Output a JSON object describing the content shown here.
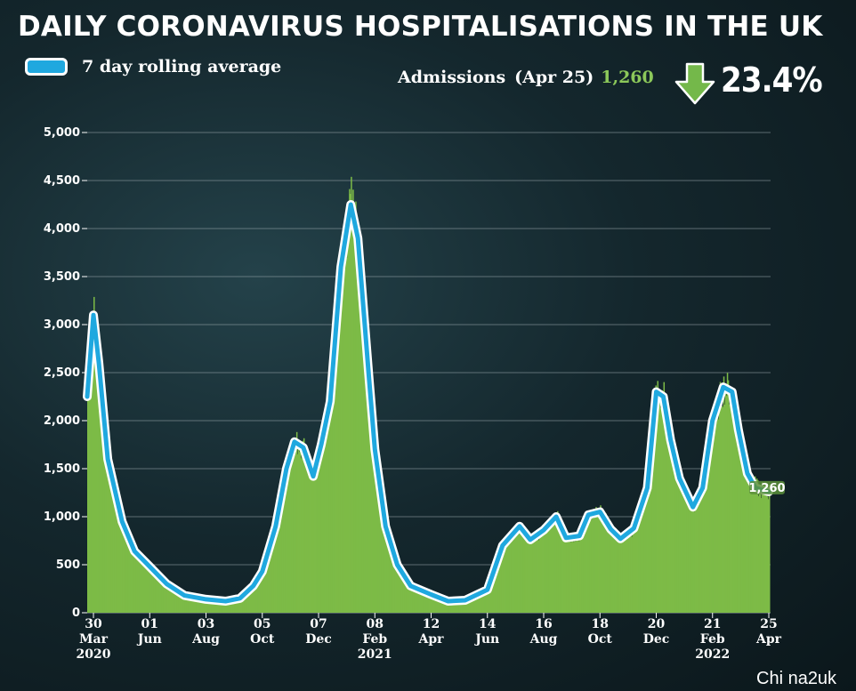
{
  "title": "DAILY CORONAVIRUS HOSPITALISATIONS IN THE UK",
  "legend": {
    "label": "7 day rolling average"
  },
  "summary": {
    "label": "Admissions",
    "date": "(Apr 25)",
    "value": "1,260",
    "change": "23.4%",
    "direction_icon": "down-arrow-icon"
  },
  "watermark": "Chi na2uk",
  "colors": {
    "bars": "#7dbb47",
    "line": "#1fa8df",
    "line_outline": "#ffffff",
    "accent_green": "#8cc85a"
  },
  "chart_data": {
    "type": "area",
    "title": "DAILY CORONAVIRUS HOSPITALISATIONS IN THE UK",
    "ylim": [
      0,
      5000
    ],
    "yticks": [
      "0",
      "500",
      "1,000",
      "1,500",
      "2,000",
      "2,500",
      "3,000",
      "3,500",
      "4,000",
      "4,500",
      "5,000"
    ],
    "grid": true,
    "legend_position": "top-left",
    "xticks": [
      {
        "day": "30",
        "month": "Mar",
        "year": "2020"
      },
      {
        "day": "01",
        "month": "Jun",
        "year": ""
      },
      {
        "day": "03",
        "month": "Aug",
        "year": ""
      },
      {
        "day": "05",
        "month": "Oct",
        "year": ""
      },
      {
        "day": "07",
        "month": "Dec",
        "year": ""
      },
      {
        "day": "08",
        "month": "Feb",
        "year": "2021"
      },
      {
        "day": "12",
        "month": "Apr",
        "year": ""
      },
      {
        "day": "14",
        "month": "Jun",
        "year": ""
      },
      {
        "day": "16",
        "month": "Aug",
        "year": ""
      },
      {
        "day": "18",
        "month": "Oct",
        "year": ""
      },
      {
        "day": "20",
        "month": "Dec",
        "year": ""
      },
      {
        "day": "21",
        "month": "Feb",
        "year": "2022"
      },
      {
        "day": "25",
        "month": "Apr",
        "year": ""
      }
    ],
    "series": [
      {
        "name": "7 day rolling average",
        "x": [
          "2020-03-23",
          "2020-03-30",
          "2020-04-05",
          "2020-04-15",
          "2020-05-01",
          "2020-05-15",
          "2020-06-01",
          "2020-06-20",
          "2020-07-10",
          "2020-08-03",
          "2020-08-25",
          "2020-09-10",
          "2020-09-25",
          "2020-10-05",
          "2020-10-20",
          "2020-11-01",
          "2020-11-10",
          "2020-11-20",
          "2020-12-01",
          "2020-12-10",
          "2020-12-20",
          "2021-01-01",
          "2021-01-12",
          "2021-01-20",
          "2021-02-01",
          "2021-02-08",
          "2021-02-20",
          "2021-03-05",
          "2021-03-20",
          "2021-04-12",
          "2021-05-01",
          "2021-05-20",
          "2021-06-14",
          "2021-07-01",
          "2021-07-20",
          "2021-08-01",
          "2021-08-16",
          "2021-08-30",
          "2021-09-10",
          "2021-09-25",
          "2021-10-05",
          "2021-10-18",
          "2021-10-30",
          "2021-11-10",
          "2021-11-25",
          "2021-12-10",
          "2021-12-20",
          "2021-12-28",
          "2022-01-05",
          "2022-01-15",
          "2022-01-30",
          "2022-02-10",
          "2022-02-21",
          "2022-03-05",
          "2022-03-15",
          "2022-03-22",
          "2022-04-01",
          "2022-04-10",
          "2022-04-25"
        ],
        "values": [
          2250,
          3100,
          2600,
          1600,
          950,
          640,
          480,
          300,
          180,
          140,
          120,
          150,
          280,
          430,
          900,
          1500,
          1780,
          1720,
          1420,
          1750,
          2200,
          3600,
          4250,
          3900,
          2500,
          1700,
          900,
          500,
          280,
          190,
          120,
          130,
          240,
          700,
          900,
          760,
          860,
          1000,
          780,
          800,
          1020,
          1050,
          870,
          770,
          880,
          1300,
          2300,
          2250,
          1800,
          1400,
          1100,
          1300,
          2000,
          2350,
          2300,
          1900,
          1450,
          1300,
          1260
        ]
      }
    ],
    "end_label": "1,260"
  }
}
